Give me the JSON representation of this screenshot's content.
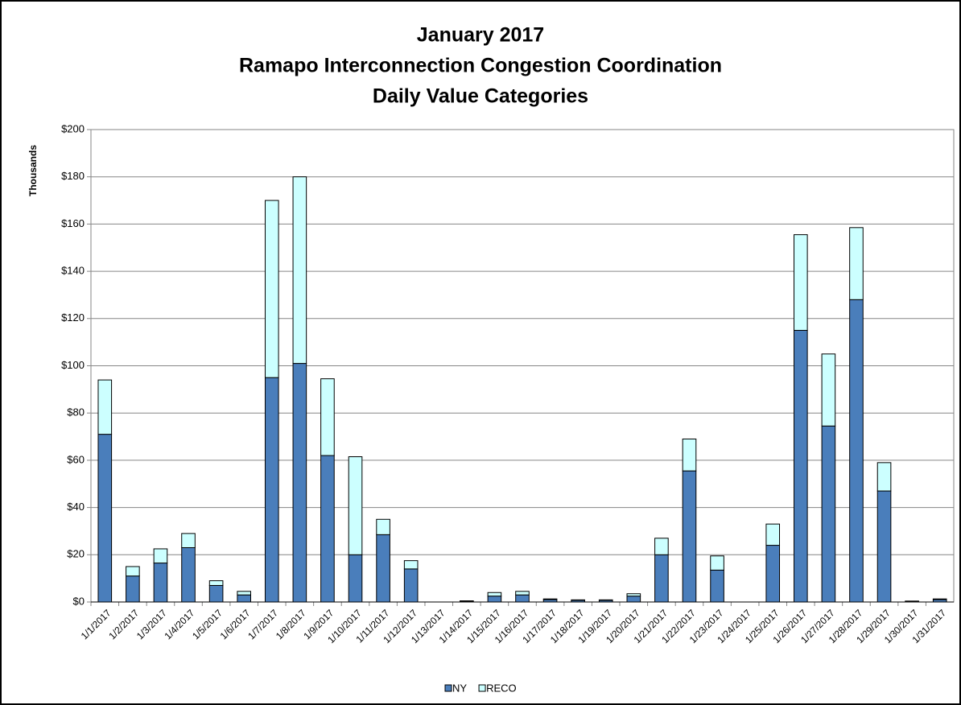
{
  "chart_data": {
    "type": "stacked_bar",
    "title": [
      "January 2017",
      "Ramapo Interconnection Congestion Coordination",
      "Daily Value Categories"
    ],
    "y_axis_label": "Thousands",
    "categories": [
      "1/1/2017",
      "1/2/2017",
      "1/3/2017",
      "1/4/2017",
      "1/5/2017",
      "1/6/2017",
      "1/7/2017",
      "1/8/2017",
      "1/9/2017",
      "1/10/2017",
      "1/11/2017",
      "1/12/2017",
      "1/13/2017",
      "1/14/2017",
      "1/15/2017",
      "1/16/2017",
      "1/17/2017",
      "1/18/2017",
      "1/19/2017",
      "1/20/2017",
      "1/21/2017",
      "1/22/2017",
      "1/23/2017",
      "1/24/2017",
      "1/25/2017",
      "1/26/2017",
      "1/27/2017",
      "1/28/2017",
      "1/29/2017",
      "1/30/2017",
      "1/31/2017"
    ],
    "series": [
      {
        "name": "NY",
        "color": "#4a7ebb",
        "values": [
          71,
          11,
          16.5,
          23,
          7,
          3,
          95,
          101,
          62,
          20,
          28.5,
          14,
          0,
          0.3,
          2.5,
          3,
          1,
          0.7,
          0.7,
          2.5,
          20,
          55.5,
          13.5,
          0,
          24,
          115,
          74.5,
          128,
          47,
          0.3,
          1
        ]
      },
      {
        "name": "RECO",
        "color": "#ccffff",
        "values": [
          23,
          4,
          6,
          6,
          2,
          1.5,
          75,
          79,
          32.5,
          41.5,
          6.5,
          3.5,
          0,
          0.2,
          1.5,
          1.5,
          0.3,
          0.2,
          0.2,
          1,
          7,
          13.5,
          6,
          0,
          9,
          40.5,
          30.5,
          30.5,
          12,
          0.1,
          0.3
        ]
      }
    ],
    "ylim": [
      0,
      200
    ],
    "yticks": [
      {
        "value": 0,
        "label": "$0"
      },
      {
        "value": 20,
        "label": "$20"
      },
      {
        "value": 40,
        "label": "$40"
      },
      {
        "value": 60,
        "label": "$60"
      },
      {
        "value": 80,
        "label": "$80"
      },
      {
        "value": 100,
        "label": "$100"
      },
      {
        "value": 120,
        "label": "$120"
      },
      {
        "value": 140,
        "label": "$140"
      },
      {
        "value": 160,
        "label": "$160"
      },
      {
        "value": 180,
        "label": "$180"
      },
      {
        "value": 200,
        "label": "$200"
      }
    ],
    "grid": true,
    "legend": "bottom"
  }
}
